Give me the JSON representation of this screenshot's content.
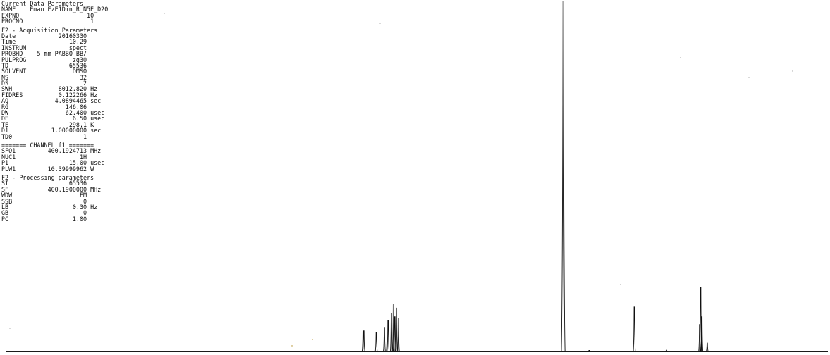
{
  "parameters": {
    "current": {
      "title": "Current Data Parameters",
      "rows": [
        [
          "NAME",
          "Eman EzE1Din_R_N5E_D20"
        ],
        [
          "EXPNO",
          "10"
        ],
        [
          "PROCNO",
          "1"
        ]
      ]
    },
    "acquisition": {
      "title": "F2 - Acquisition Parameters",
      "rows": [
        [
          "Date_",
          "20160330",
          ""
        ],
        [
          "Time",
          "10.29",
          ""
        ],
        [
          "INSTRUM",
          "spect",
          ""
        ],
        [
          "PROBHD",
          "5 mm PABBO BB/",
          ""
        ],
        [
          "PULPROG",
          "zg30",
          ""
        ],
        [
          "TD",
          "65536",
          ""
        ],
        [
          "SOLVENT",
          "DMSO",
          ""
        ],
        [
          "NS",
          "32",
          ""
        ],
        [
          "DS",
          "2",
          ""
        ],
        [
          "SWH",
          "8012.820",
          "Hz"
        ],
        [
          "FIDRES",
          "0.122266",
          "Hz"
        ],
        [
          "AQ",
          "4.0894465",
          "sec"
        ],
        [
          "RG",
          "146.06",
          ""
        ],
        [
          "DW",
          "62.400",
          "usec"
        ],
        [
          "DE",
          "6.50",
          "usec"
        ],
        [
          "TE",
          "298.1",
          "K"
        ],
        [
          "D1",
          "1.00000000",
          "sec"
        ],
        [
          "TD0",
          "1",
          ""
        ]
      ]
    },
    "channel": {
      "title": "======= CHANNEL f1 =======",
      "rows": [
        [
          "SFO1",
          "400.1924713",
          "MHz"
        ],
        [
          "NUC1",
          "1H",
          ""
        ],
        [
          "P1",
          "15.00",
          "usec"
        ],
        [
          "PLW1",
          "10.39999962",
          "W"
        ]
      ]
    },
    "processing": {
      "title": "F2 - Processing parameters",
      "rows": [
        [
          "SI",
          "65536",
          ""
        ],
        [
          "SF",
          "400.1900000",
          "MHz"
        ],
        [
          "WDW",
          "EM",
          ""
        ],
        [
          "SSB",
          "0",
          ""
        ],
        [
          "LB",
          "0.30",
          "Hz"
        ],
        [
          "GB",
          "0",
          ""
        ],
        [
          "PC",
          "1.00",
          ""
        ]
      ]
    }
  },
  "chart_data": {
    "type": "line",
    "title": "",
    "xlabel": "",
    "ylabel": "",
    "x_axis_shown": false,
    "grid": false,
    "line_color": "#111111",
    "x_units": "relative position",
    "y_units": "relative intensity",
    "xlim": [
      0,
      1
    ],
    "ylim": [
      0,
      1
    ],
    "peaks": [
      {
        "x": 0.4355,
        "y": 0.06
      },
      {
        "x": 0.4507,
        "y": 0.055
      },
      {
        "x": 0.4605,
        "y": 0.07
      },
      {
        "x": 0.465,
        "y": 0.09
      },
      {
        "x": 0.469,
        "y": 0.11
      },
      {
        "x": 0.4715,
        "y": 0.135
      },
      {
        "x": 0.4732,
        "y": 0.1
      },
      {
        "x": 0.475,
        "y": 0.125
      },
      {
        "x": 0.4775,
        "y": 0.095
      },
      {
        "x": 0.678,
        "y": 1.0
      },
      {
        "x": 0.7095,
        "y": 0.004
      },
      {
        "x": 0.7645,
        "y": 0.128
      },
      {
        "x": 0.8035,
        "y": 0.005
      },
      {
        "x": 0.844,
        "y": 0.078
      },
      {
        "x": 0.8452,
        "y": 0.185
      },
      {
        "x": 0.8467,
        "y": 0.1
      },
      {
        "x": 0.8532,
        "y": 0.025
      }
    ]
  }
}
